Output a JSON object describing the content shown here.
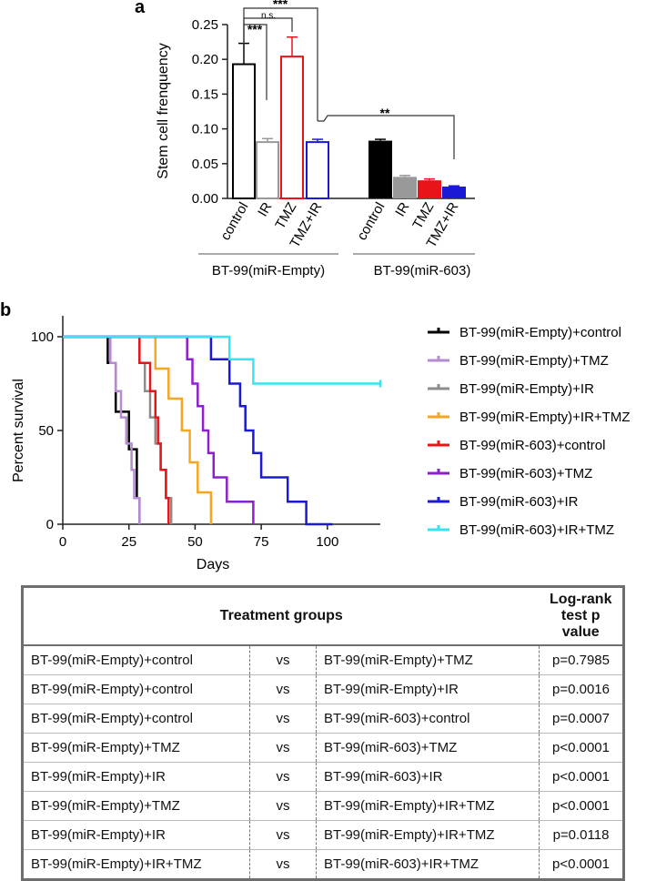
{
  "panel_a": {
    "label": "a",
    "ylabel": "Stem cell frenquency",
    "yticks": [
      "0.00",
      "0.05",
      "0.10",
      "0.15",
      "0.20",
      "0.25"
    ],
    "group1_label": "BT-99(miR-Empty)",
    "group2_label": "BT-99(miR-603)",
    "significance": [
      "***",
      "n.s.",
      "***",
      "**"
    ]
  },
  "panel_b": {
    "label": "b",
    "ylabel": "Percent survival",
    "xlabel": "Days",
    "xticks": [
      "0",
      "25",
      "50",
      "75",
      "100"
    ],
    "yticks": [
      "0",
      "50",
      "100"
    ]
  },
  "table": {
    "header_groups": "Treatment groups",
    "header_pvalue_line1": "Log-rank",
    "header_pvalue_line2": "test p value",
    "vs_label": "vs",
    "rows": [
      {
        "g1": "BT-99(miR-Empty)+control",
        "g2": "BT-99(miR-Empty)+TMZ",
        "p": "p=0.7985"
      },
      {
        "g1": "BT-99(miR-Empty)+control",
        "g2": "BT-99(miR-Empty)+IR",
        "p": "p=0.0016"
      },
      {
        "g1": "BT-99(miR-Empty)+control",
        "g2": "BT-99(miR-603)+control",
        "p": "p=0.0007"
      },
      {
        "g1": "BT-99(miR-Empty)+TMZ",
        "g2": "BT-99(miR-603)+TMZ",
        "p": "p<0.0001"
      },
      {
        "g1": "BT-99(miR-Empty)+IR",
        "g2": "BT-99(miR-603)+IR",
        "p": "p<0.0001"
      },
      {
        "g1": "BT-99(miR-Empty)+TMZ",
        "g2": "BT-99(miR-Empty)+IR+TMZ",
        "p": "p<0.0001"
      },
      {
        "g1": "BT-99(miR-Empty)+IR",
        "g2": "BT-99(miR-Empty)+IR+TMZ",
        "p": "p=0.0118"
      },
      {
        "g1": "BT-99(miR-Empty)+IR+TMZ",
        "g2": "BT-99(miR-603)+IR+TMZ",
        "p": "p<0.0001"
      }
    ]
  },
  "chart_data": [
    {
      "type": "bar",
      "title": "",
      "ylabel": "Stem cell frenquency",
      "ylim": [
        0,
        0.25
      ],
      "categories": [
        "control",
        "IR",
        "TMZ",
        "TMZ+IR",
        "control",
        "IR",
        "TMZ",
        "TMZ+IR"
      ],
      "groups": [
        "BT-99(miR-Empty)",
        "BT-99(miR-603)"
      ],
      "values": [
        0.193,
        0.081,
        0.204,
        0.081,
        0.083,
        0.031,
        0.026,
        0.017
      ],
      "errors": [
        0.03,
        0.005,
        0.028,
        0.004,
        0.002,
        0.002,
        0.002,
        0.001
      ],
      "colors": [
        "#000000",
        "#999999",
        "#e8141a",
        "#1a1ad6",
        "#000000",
        "#999999",
        "#e8141a",
        "#1a1ad6"
      ],
      "filled": [
        false,
        false,
        false,
        false,
        true,
        true,
        true,
        true
      ]
    },
    {
      "type": "line",
      "title": "",
      "xlabel": "Days",
      "ylabel": "Percent survival",
      "xlim": [
        0,
        120
      ],
      "ylim": [
        0,
        100
      ],
      "series": [
        {
          "name": "BT-99(miR-Empty)+control",
          "color": "#000000",
          "points": [
            [
              0,
              100
            ],
            [
              17,
              100
            ],
            [
              17,
              86
            ],
            [
              20,
              86
            ],
            [
              20,
              60
            ],
            [
              25,
              60
            ],
            [
              25,
              40
            ],
            [
              28,
              40
            ],
            [
              28,
              14
            ],
            [
              29,
              14
            ],
            [
              29,
              0
            ]
          ]
        },
        {
          "name": "BT-99(miR-Empty)+TMZ",
          "color": "#b48ccf",
          "points": [
            [
              0,
              100
            ],
            [
              18,
              100
            ],
            [
              18,
              86
            ],
            [
              20,
              86
            ],
            [
              20,
              71
            ],
            [
              22,
              71
            ],
            [
              22,
              57
            ],
            [
              24,
              57
            ],
            [
              24,
              43
            ],
            [
              26,
              43
            ],
            [
              26,
              29
            ],
            [
              27,
              29
            ],
            [
              27,
              14
            ],
            [
              29,
              14
            ],
            [
              29,
              0
            ]
          ]
        },
        {
          "name": "BT-99(miR-Empty)+IR",
          "color": "#8c8c8c",
          "points": [
            [
              0,
              100
            ],
            [
              29,
              100
            ],
            [
              29,
              86
            ],
            [
              31,
              86
            ],
            [
              31,
              71
            ],
            [
              33,
              71
            ],
            [
              33,
              57
            ],
            [
              35,
              57
            ],
            [
              35,
              43
            ],
            [
              37,
              43
            ],
            [
              37,
              29
            ],
            [
              39,
              29
            ],
            [
              39,
              14
            ],
            [
              41,
              14
            ],
            [
              41,
              0
            ]
          ]
        },
        {
          "name": "BT-99(miR-Empty)+IR+TMZ",
          "color": "#f5a623",
          "points": [
            [
              0,
              100
            ],
            [
              35,
              100
            ],
            [
              35,
              83
            ],
            [
              40,
              83
            ],
            [
              40,
              67
            ],
            [
              45,
              67
            ],
            [
              45,
              50
            ],
            [
              48,
              50
            ],
            [
              48,
              33
            ],
            [
              51,
              33
            ],
            [
              51,
              17
            ],
            [
              56,
              17
            ],
            [
              56,
              0
            ]
          ]
        },
        {
          "name": "BT-99(miR-603)+control",
          "color": "#e8141a",
          "points": [
            [
              0,
              100
            ],
            [
              29,
              100
            ],
            [
              29,
              86
            ],
            [
              33,
              86
            ],
            [
              33,
              71
            ],
            [
              35,
              71
            ],
            [
              35,
              57
            ],
            [
              36,
              57
            ],
            [
              36,
              43
            ],
            [
              37,
              43
            ],
            [
              37,
              29
            ],
            [
              39,
              29
            ],
            [
              39,
              14
            ],
            [
              40,
              14
            ],
            [
              40,
              0
            ]
          ]
        },
        {
          "name": "BT-99(miR-603)+TMZ",
          "color": "#8e1fcf",
          "points": [
            [
              0,
              100
            ],
            [
              47,
              100
            ],
            [
              47,
              88
            ],
            [
              49,
              88
            ],
            [
              49,
              75
            ],
            [
              51,
              75
            ],
            [
              51,
              63
            ],
            [
              53,
              63
            ],
            [
              53,
              50
            ],
            [
              55,
              50
            ],
            [
              55,
              38
            ],
            [
              57,
              38
            ],
            [
              57,
              25
            ],
            [
              62,
              25
            ],
            [
              62,
              12
            ],
            [
              72,
              12
            ],
            [
              72,
              0
            ]
          ]
        },
        {
          "name": "BT-99(miR-603)+IR",
          "color": "#1a1ad6",
          "points": [
            [
              0,
              100
            ],
            [
              56,
              100
            ],
            [
              56,
              88
            ],
            [
              63,
              88
            ],
            [
              63,
              75
            ],
            [
              67,
              75
            ],
            [
              67,
              63
            ],
            [
              69,
              63
            ],
            [
              69,
              50
            ],
            [
              72,
              50
            ],
            [
              72,
              38
            ],
            [
              75,
              38
            ],
            [
              75,
              25
            ],
            [
              85,
              25
            ],
            [
              85,
              12
            ],
            [
              92,
              12
            ],
            [
              92,
              0
            ],
            [
              102,
              0
            ]
          ]
        },
        {
          "name": "BT-99(miR-603)+IR+TMZ",
          "color": "#33e6f2",
          "points": [
            [
              0,
              100
            ],
            [
              63,
              100
            ],
            [
              63,
              88
            ],
            [
              72,
              88
            ],
            [
              72,
              75
            ],
            [
              120,
              75
            ]
          ]
        }
      ]
    }
  ]
}
